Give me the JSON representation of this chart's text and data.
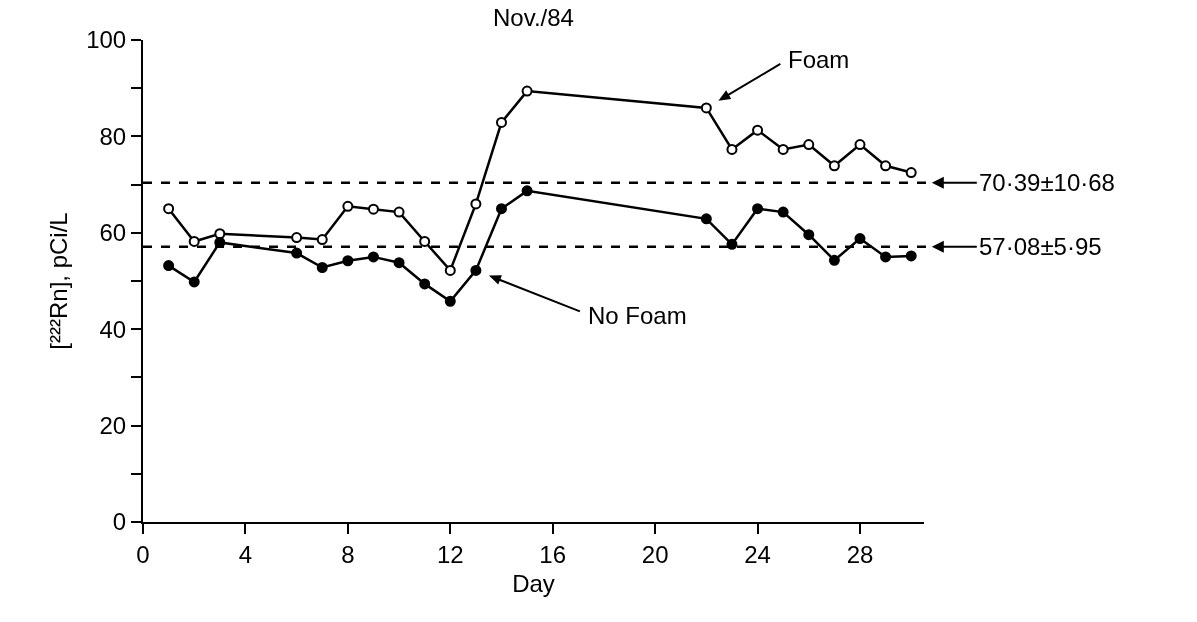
{
  "chart_data": {
    "type": "line",
    "title": "Nov./84",
    "xlabel": "Day",
    "ylabel": "[²²²Rn], pCi/L",
    "x": [
      1,
      2,
      3,
      6,
      7,
      8,
      9,
      10,
      11,
      12,
      13,
      14,
      15,
      22,
      23,
      24,
      25,
      26,
      27,
      28,
      29,
      30
    ],
    "series": [
      {
        "name": "Foam",
        "color": "#000000",
        "values": [
          65,
          58.2,
          59.8,
          59,
          58.6,
          65.5,
          64.9,
          64.3,
          58.2,
          52.2,
          66,
          82.9,
          89.4,
          85.9,
          77.3,
          81.3,
          77.3,
          78.3,
          73.9,
          78.3,
          73.9,
          72.5
        ]
      },
      {
        "name": "No Foam",
        "color": "#000000",
        "values": [
          53.2,
          49.8,
          58,
          55.8,
          52.8,
          54.2,
          55,
          53.8,
          49.4,
          45.8,
          52.2,
          65,
          68.7,
          62.9,
          57.6,
          65,
          64.3,
          59.6,
          54.3,
          58.8,
          55,
          55.2
        ]
      }
    ],
    "xlim": [
      0,
      30.5
    ],
    "xticks": [
      0,
      4,
      8,
      12,
      16,
      20,
      24,
      28
    ],
    "ylim": [
      0,
      100
    ],
    "yticks": [
      0,
      {
        "value": 10,
        "label": null
      },
      20,
      {
        "value": 30,
        "label": null
      },
      40,
      {
        "value": 50,
        "label": null
      },
      60,
      {
        "value": 70,
        "label": null
      },
      80,
      {
        "value": 90,
        "label": null
      },
      100
    ],
    "ref_lines": [
      {
        "axis": "y",
        "value": 70.39,
        "label": "70·39±10·68",
        "line_style": "dashed",
        "color": "#000000"
      },
      {
        "axis": "y",
        "value": 57.08,
        "label": "57·08±5·95",
        "line_style": "dashed",
        "color": "#000000"
      }
    ],
    "grid": false,
    "legend": false,
    "marker": "circle",
    "line_style": "solid"
  }
}
